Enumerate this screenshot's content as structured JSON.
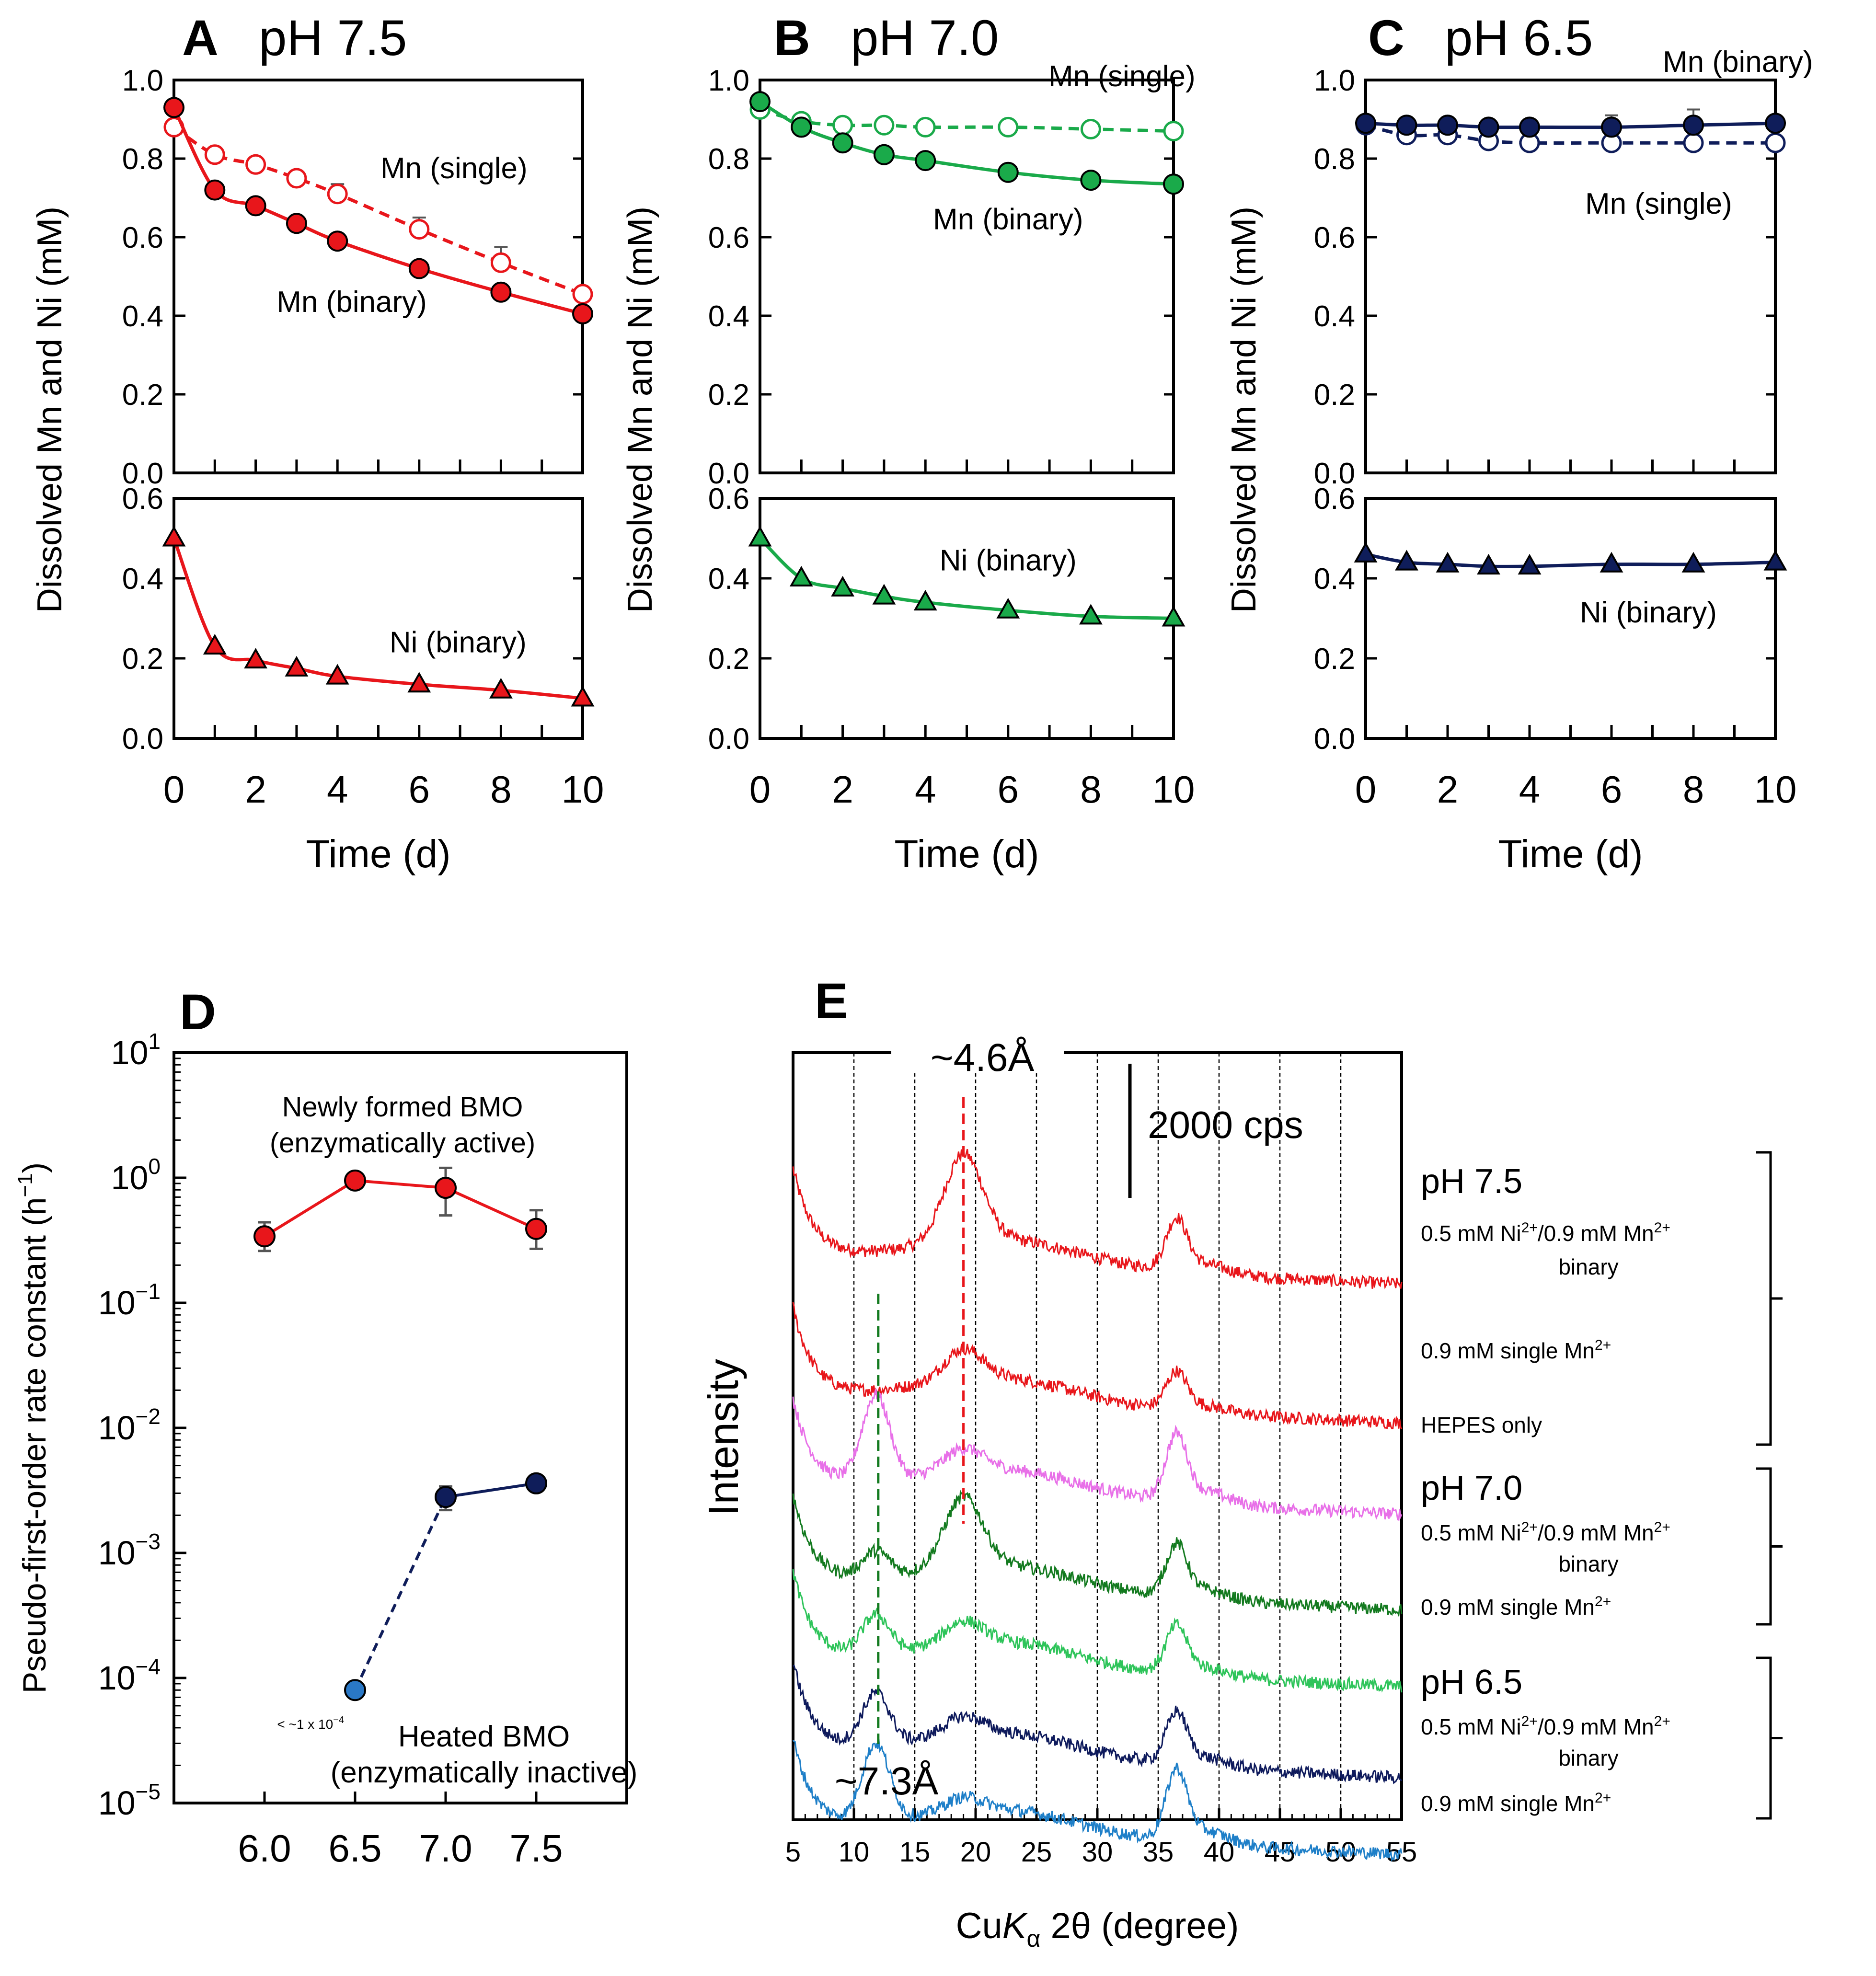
{
  "figure_title": "Dissolved Mn and Ni kinetics, rate constants and XRD patterns",
  "colors": {
    "red": "#e8161b",
    "green": "#1aaa4a",
    "navy": "#0f1d5a",
    "darkgreen": "#137a1f",
    "lightgreen": "#2ec45a",
    "magenta": "#e870e8",
    "darknavy": "#0e1a5c",
    "lightblue": "#1e7fc8",
    "blueheated": "#2a78c6",
    "bracket": "#000000"
  },
  "chart_data": [
    {
      "id": "A",
      "type": "line",
      "letter": "A",
      "title": "pH 7.5",
      "color": "red",
      "ylabel": "Dissolved Mn and Ni (mM)",
      "xlabel": "Time (d)",
      "xlim": [
        0,
        10
      ],
      "xticks": [
        "0",
        "2",
        "4",
        "6",
        "8",
        "10"
      ],
      "top": {
        "ylim": [
          0,
          1
        ],
        "yticks": [
          "0.0",
          "0.2",
          "0.4",
          "0.6",
          "0.8",
          "1.0"
        ],
        "series": [
          {
            "name": "Mn (single)",
            "marker": "open-circle",
            "style": "dashed",
            "x": [
              0,
              1,
              2,
              3,
              4,
              6,
              8,
              10
            ],
            "y": [
              0.88,
              0.81,
              0.785,
              0.75,
              0.71,
              0.62,
              0.535,
              0.455
            ],
            "err": [
              0,
              0,
              0,
              0,
              0.025,
              0.03,
              0.04,
              0
            ]
          },
          {
            "name": "Mn (binary)",
            "marker": "filled-circle",
            "style": "solid",
            "x": [
              0,
              1,
              2,
              3,
              4,
              6,
              8,
              10
            ],
            "y": [
              0.93,
              0.72,
              0.68,
              0.635,
              0.59,
              0.52,
              0.46,
              0.405
            ],
            "err": [
              0,
              0,
              0,
              0,
              0,
              0,
              0,
              0
            ]
          }
        ],
        "labels": [
          {
            "text": "Mn (single)",
            "x": 6.85,
            "y": 0.75
          },
          {
            "text": "Mn (binary)",
            "x": 4.35,
            "y": 0.41
          }
        ]
      },
      "bottom": {
        "ylim": [
          0,
          0.6
        ],
        "yticks": [
          "0.0",
          "0.2",
          "0.4",
          "0.6"
        ],
        "series": [
          {
            "name": "Ni (binary)",
            "marker": "filled-triangle",
            "style": "solid",
            "x": [
              0,
              1,
              2,
              3,
              4,
              6,
              8,
              10
            ],
            "y": [
              0.5,
              0.23,
              0.195,
              0.175,
              0.155,
              0.135,
              0.12,
              0.1
            ]
          }
        ],
        "labels": [
          {
            "text": "Ni (binary)",
            "x": 6.95,
            "y": 0.215
          }
        ]
      }
    },
    {
      "id": "B",
      "type": "line",
      "letter": "B",
      "title": "pH 7.0",
      "color": "green",
      "ylabel": "Dissolved Mn and Ni (mM)",
      "xlabel": "Time (d)",
      "xlim": [
        0,
        10
      ],
      "xticks": [
        "0",
        "2",
        "4",
        "6",
        "8",
        "10"
      ],
      "top": {
        "ylim": [
          0,
          1
        ],
        "yticks": [
          "0.0",
          "0.2",
          "0.4",
          "0.6",
          "0.8",
          "1.0"
        ],
        "series": [
          {
            "name": "Mn (single)",
            "marker": "open-circle",
            "style": "dashed",
            "x": [
              0,
              1,
              2,
              3,
              4,
              6,
              8,
              10
            ],
            "y": [
              0.925,
              0.895,
              0.885,
              0.885,
              0.88,
              0.88,
              0.875,
              0.87
            ],
            "err": [
              0,
              0,
              0,
              0,
              0,
              0,
              0,
              0
            ]
          },
          {
            "name": "Mn (binary)",
            "marker": "filled-circle",
            "style": "solid",
            "x": [
              0,
              1,
              2,
              3,
              4,
              6,
              8,
              10
            ],
            "y": [
              0.945,
              0.88,
              0.84,
              0.81,
              0.795,
              0.765,
              0.745,
              0.735
            ],
            "err": [
              0,
              0,
              0,
              0,
              0,
              0,
              0,
              0
            ]
          }
        ],
        "labels": [
          {
            "text": "Mn (binary)",
            "x": 6.0,
            "y": 0.62
          }
        ]
      },
      "bottom": {
        "ylim": [
          0,
          0.6
        ],
        "yticks": [
          "0.0",
          "0.2",
          "0.4",
          "0.6"
        ],
        "series": [
          {
            "name": "Ni (binary)",
            "marker": "filled-triangle",
            "style": "solid",
            "x": [
              0,
              1,
              2,
              3,
              4,
              6,
              8,
              10
            ],
            "y": [
              0.5,
              0.4,
              0.375,
              0.355,
              0.34,
              0.32,
              0.305,
              0.3
            ]
          }
        ],
        "labels": [
          {
            "text": "Ni (binary)",
            "x": 6.0,
            "y": 0.42
          }
        ]
      }
    },
    {
      "id": "C",
      "type": "line",
      "letter": "C",
      "title": "pH 6.5",
      "color": "navy",
      "ylabel": "Dissolved Mn and Ni (mM)",
      "xlabel": "Time (d)",
      "xlim": [
        0,
        10
      ],
      "xticks": [
        "0",
        "2",
        "4",
        "6",
        "8",
        "10"
      ],
      "top": {
        "ylim": [
          0,
          1
        ],
        "yticks": [
          "0.0",
          "0.2",
          "0.4",
          "0.6",
          "0.8",
          "1.0"
        ],
        "series": [
          {
            "name": "Mn (single)",
            "marker": "open-circle",
            "style": "dashed",
            "x": [
              0,
              1,
              2,
              3,
              4,
              6,
              8,
              10
            ],
            "y": [
              0.885,
              0.86,
              0.86,
              0.845,
              0.84,
              0.84,
              0.84,
              0.84
            ],
            "err": [
              0,
              0,
              0,
              0,
              0.035,
              0.04,
              0.05,
              0
            ]
          },
          {
            "name": "Mn (binary)",
            "marker": "filled-circle",
            "style": "solid",
            "x": [
              0,
              1,
              2,
              3,
              4,
              6,
              8,
              10
            ],
            "y": [
              0.89,
              0.885,
              0.885,
              0.88,
              0.88,
              0.88,
              0.885,
              0.89
            ],
            "err": [
              0,
              0,
              0,
              0,
              0,
              0.03,
              0.04,
              0
            ]
          }
        ],
        "labels": [
          {
            "text": "Mn (single)",
            "x": 7.15,
            "y": 0.66
          }
        ]
      },
      "bottom": {
        "ylim": [
          0,
          0.6
        ],
        "yticks": [
          "0.0",
          "0.2",
          "0.4",
          "0.6"
        ],
        "series": [
          {
            "name": "Ni (binary)",
            "marker": "filled-triangle",
            "style": "solid",
            "x": [
              0,
              1,
              2,
              3,
              4,
              6,
              8,
              10
            ],
            "y": [
              0.46,
              0.44,
              0.435,
              0.43,
              0.43,
              0.435,
              0.435,
              0.44
            ]
          }
        ],
        "labels": [
          {
            "text": "Ni (binary)",
            "x": 6.9,
            "y": 0.29
          }
        ]
      }
    },
    {
      "id": "D",
      "type": "scatter",
      "letter": "D",
      "ylabel": "Pseudo-first-order rate constant (h",
      "ylabel_sup": "−1",
      "ylabel_close": ")",
      "xlabel": "",
      "xlim": [
        5.5,
        8.0
      ],
      "xticks": [
        "6.0",
        "6.5",
        "7.0",
        "7.5"
      ],
      "yscale": "log",
      "ylim_exp": [
        -5,
        1
      ],
      "ytick_base": "10",
      "ytick_exps": [
        "−5",
        "−4",
        "−3",
        "−2",
        "−1",
        "0",
        "1"
      ],
      "series": [
        {
          "name": "Newly formed BMO",
          "x": [
            6.0,
            6.5,
            7.0,
            7.5
          ],
          "y": [
            0.34,
            0.95,
            0.83,
            0.39
          ],
          "err_hi": [
            0.44,
            0.98,
            1.2,
            0.55
          ],
          "err_lo": [
            0.26,
            0.93,
            0.5,
            0.27
          ],
          "style": "solid"
        },
        {
          "name": "Heated BMO",
          "x": [
            6.5,
            7.0,
            7.5
          ],
          "y": [
            8e-05,
            0.0028,
            0.0036
          ],
          "err_hi": [
            8e-05,
            0.0034,
            0.0036
          ],
          "err_lo": [
            8e-05,
            0.0022,
            0.0036
          ],
          "style": "mixed"
        }
      ],
      "annotations": {
        "active_1": "Newly formed BMO",
        "active_2": "(enzymatically active)",
        "inactive_1": "Heated BMO",
        "inactive_2": "(enzymatically inactive)",
        "limit": "< ~1 x 10",
        "limit_sup": "−4"
      }
    },
    {
      "id": "E",
      "type": "line",
      "letter": "E",
      "ylabel": "Intensity",
      "xlabel_pre": "Cu",
      "xlabel_k": "K",
      "xlabel_alpha": "α",
      "xlabel_post": " 2θ (degree)",
      "xlim": [
        5,
        55
      ],
      "xticks": [
        "5",
        "10",
        "15",
        "20",
        "25",
        "30",
        "35",
        "40",
        "45",
        "50",
        "55"
      ],
      "gridlines": [
        10,
        15,
        20,
        25,
        30,
        35,
        40,
        45,
        50
      ],
      "peak_46": {
        "label": "~4.6Å",
        "x": 19
      },
      "peak_73": {
        "label": "~7.3Å",
        "x": 12
      },
      "scale_bar": "2000 cps",
      "patterns": [
        {
          "name": "pH 7.5 binary",
          "color": "red",
          "offset": 0,
          "peak12": 0.0,
          "peak19": 1.0,
          "peak36": 0.55
        },
        {
          "name": "pH 7.5 single Mn",
          "color": "red",
          "offset": 1,
          "peak12": 0.0,
          "peak19": 0.35,
          "peak36": 0.4
        },
        {
          "name": "HEPES only",
          "color": "magenta",
          "offset": 2,
          "peak12": 1.0,
          "peak19": 0.25,
          "peak36": 0.7
        },
        {
          "name": "pH 7.0 binary",
          "color": "darkgreen",
          "offset": 3,
          "peak12": 0.3,
          "peak19": 0.8,
          "peak36": 0.55
        },
        {
          "name": "pH 7.0 single Mn",
          "color": "lightgreen",
          "offset": 4,
          "peak12": 0.45,
          "peak19": 0.25,
          "peak36": 0.5
        },
        {
          "name": "pH 6.5 binary",
          "color": "darknavy",
          "offset": 5,
          "peak12": 0.6,
          "peak19": 0.2,
          "peak36": 0.55
        },
        {
          "name": "pH 6.5 single Mn",
          "color": "lightblue",
          "offset": 6,
          "peak12": 0.9,
          "peak19": 0.15,
          "peak36": 0.75
        }
      ],
      "groups": [
        {
          "title": "pH 7.5",
          "entries": [
            {
              "line1": "0.5 mM Ni",
              "sup1": "2+",
              "mid": "/0.9 mM Mn",
              "sup2": "2+",
              "line2": "binary"
            },
            {
              "line1": "0.9 mM single Mn",
              "sup1": "2+"
            },
            {
              "line1": "HEPES only"
            }
          ]
        },
        {
          "title": "pH 7.0",
          "entries": [
            {
              "line1": "0.5 mM Ni",
              "sup1": "2+",
              "mid": "/0.9 mM Mn",
              "sup2": "2+",
              "line2": "binary"
            },
            {
              "line1": "0.9 mM single Mn",
              "sup1": "2+"
            }
          ]
        },
        {
          "title": "pH 6.5",
          "entries": [
            {
              "line1": "0.5 mM Ni",
              "sup1": "2+",
              "mid": "/0.9 mM Mn",
              "sup2": "2+",
              "line2": "binary"
            },
            {
              "line1": "0.9 mM single Mn",
              "sup1": "2+"
            }
          ]
        }
      ]
    }
  ]
}
